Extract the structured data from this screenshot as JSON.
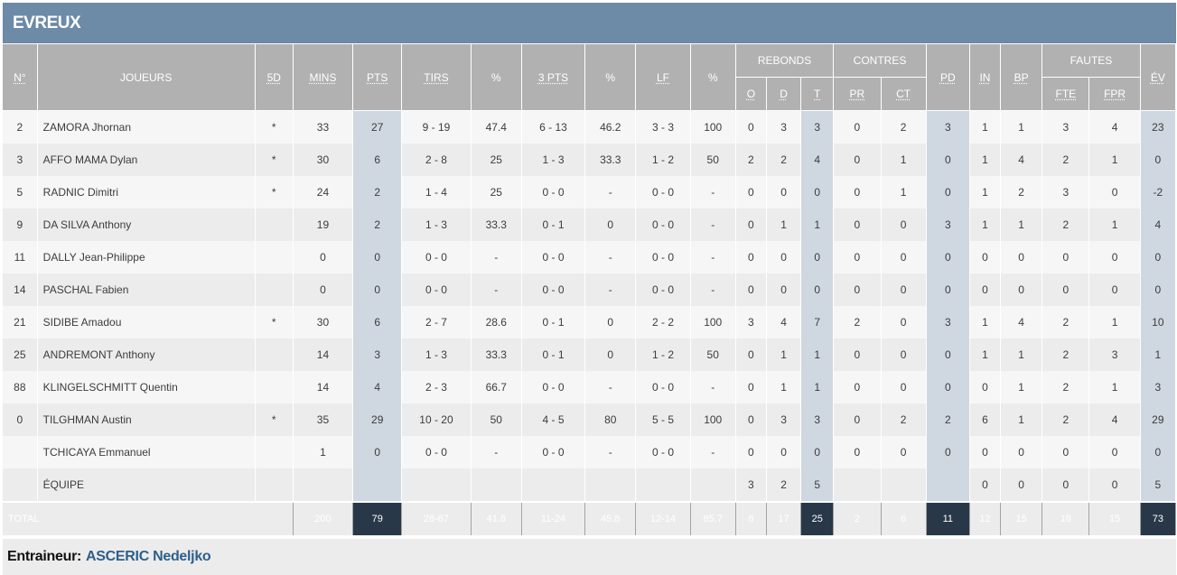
{
  "team": {
    "name": "EVREUX"
  },
  "headers": {
    "num": "N°",
    "player": "JOUEURS",
    "five": "5D",
    "mins": "MINS",
    "pts": "PTS",
    "tirs": "TIRS",
    "tirs_pct": "%",
    "three": "3 PTS",
    "three_pct": "%",
    "lf": "LF",
    "lf_pct": "%",
    "rebonds": "REBONDS",
    "reb_o": "O",
    "reb_d": "D",
    "reb_t": "T",
    "contres": "CONTRES",
    "contres_pr": "PR",
    "contres_ct": "CT",
    "pd": "PD",
    "in": "IN",
    "bp": "BP",
    "fautes": "FAUTES",
    "fautes_fte": "FTE",
    "fautes_fpr": "FPR",
    "ev": "ÉV"
  },
  "players": [
    {
      "num": "2",
      "name": "ZAMORA Jhornan",
      "five": "*",
      "mins": "33",
      "pts": "27",
      "tirs": "9 - 19",
      "tirs_pct": "47.4",
      "three": "6 - 13",
      "three_pct": "46.2",
      "lf": "3 - 3",
      "lf_pct": "100",
      "o": "0",
      "d": "3",
      "t": "3",
      "pr": "0",
      "ct": "2",
      "pd": "3",
      "in": "1",
      "bp": "1",
      "fte": "3",
      "fpr": "4",
      "ev": "23"
    },
    {
      "num": "3",
      "name": "AFFO MAMA Dylan",
      "five": "*",
      "mins": "30",
      "pts": "6",
      "tirs": "2 - 8",
      "tirs_pct": "25",
      "three": "1 - 3",
      "three_pct": "33.3",
      "lf": "1 - 2",
      "lf_pct": "50",
      "o": "2",
      "d": "2",
      "t": "4",
      "pr": "0",
      "ct": "1",
      "pd": "0",
      "in": "1",
      "bp": "4",
      "fte": "2",
      "fpr": "1",
      "ev": "0"
    },
    {
      "num": "5",
      "name": "RADNIC Dimitri",
      "five": "*",
      "mins": "24",
      "pts": "2",
      "tirs": "1 - 4",
      "tirs_pct": "25",
      "three": "0 - 0",
      "three_pct": "-",
      "lf": "0 - 0",
      "lf_pct": "-",
      "o": "0",
      "d": "0",
      "t": "0",
      "pr": "0",
      "ct": "1",
      "pd": "0",
      "in": "1",
      "bp": "2",
      "fte": "3",
      "fpr": "0",
      "ev": "-2"
    },
    {
      "num": "9",
      "name": "DA SILVA Anthony",
      "five": "",
      "mins": "19",
      "pts": "2",
      "tirs": "1 - 3",
      "tirs_pct": "33.3",
      "three": "0 - 1",
      "three_pct": "0",
      "lf": "0 - 0",
      "lf_pct": "-",
      "o": "0",
      "d": "1",
      "t": "1",
      "pr": "0",
      "ct": "0",
      "pd": "3",
      "in": "1",
      "bp": "1",
      "fte": "2",
      "fpr": "1",
      "ev": "4"
    },
    {
      "num": "11",
      "name": "DALLY Jean-Philippe",
      "five": "",
      "mins": "0",
      "pts": "0",
      "tirs": "0 - 0",
      "tirs_pct": "-",
      "three": "0 - 0",
      "three_pct": "-",
      "lf": "0 - 0",
      "lf_pct": "-",
      "o": "0",
      "d": "0",
      "t": "0",
      "pr": "0",
      "ct": "0",
      "pd": "0",
      "in": "0",
      "bp": "0",
      "fte": "0",
      "fpr": "0",
      "ev": "0"
    },
    {
      "num": "14",
      "name": "PASCHAL Fabien",
      "five": "",
      "mins": "0",
      "pts": "0",
      "tirs": "0 - 0",
      "tirs_pct": "-",
      "three": "0 - 0",
      "three_pct": "-",
      "lf": "0 - 0",
      "lf_pct": "-",
      "o": "0",
      "d": "0",
      "t": "0",
      "pr": "0",
      "ct": "0",
      "pd": "0",
      "in": "0",
      "bp": "0",
      "fte": "0",
      "fpr": "0",
      "ev": "0"
    },
    {
      "num": "21",
      "name": "SIDIBE Amadou",
      "five": "*",
      "mins": "30",
      "pts": "6",
      "tirs": "2 - 7",
      "tirs_pct": "28.6",
      "three": "0 - 1",
      "three_pct": "0",
      "lf": "2 - 2",
      "lf_pct": "100",
      "o": "3",
      "d": "4",
      "t": "7",
      "pr": "2",
      "ct": "0",
      "pd": "3",
      "in": "1",
      "bp": "4",
      "fte": "2",
      "fpr": "1",
      "ev": "10"
    },
    {
      "num": "25",
      "name": "ANDREMONT Anthony",
      "five": "",
      "mins": "14",
      "pts": "3",
      "tirs": "1 - 3",
      "tirs_pct": "33.3",
      "three": "0 - 1",
      "three_pct": "0",
      "lf": "1 - 2",
      "lf_pct": "50",
      "o": "0",
      "d": "1",
      "t": "1",
      "pr": "0",
      "ct": "0",
      "pd": "0",
      "in": "1",
      "bp": "1",
      "fte": "2",
      "fpr": "3",
      "ev": "1"
    },
    {
      "num": "88",
      "name": "KLINGELSCHMITT Quentin",
      "five": "",
      "mins": "14",
      "pts": "4",
      "tirs": "2 - 3",
      "tirs_pct": "66.7",
      "three": "0 - 0",
      "three_pct": "-",
      "lf": "0 - 0",
      "lf_pct": "-",
      "o": "0",
      "d": "1",
      "t": "1",
      "pr": "0",
      "ct": "0",
      "pd": "0",
      "in": "0",
      "bp": "1",
      "fte": "2",
      "fpr": "1",
      "ev": "3"
    },
    {
      "num": "0",
      "name": "TILGHMAN Austin",
      "five": "*",
      "mins": "35",
      "pts": "29",
      "tirs": "10 - 20",
      "tirs_pct": "50",
      "three": "4 - 5",
      "three_pct": "80",
      "lf": "5 - 5",
      "lf_pct": "100",
      "o": "0",
      "d": "3",
      "t": "3",
      "pr": "0",
      "ct": "2",
      "pd": "2",
      "in": "6",
      "bp": "1",
      "fte": "2",
      "fpr": "4",
      "ev": "29"
    },
    {
      "num": "",
      "name": "TCHICAYA Emmanuel",
      "five": "",
      "mins": "1",
      "pts": "0",
      "tirs": "0 - 0",
      "tirs_pct": "-",
      "three": "0 - 0",
      "three_pct": "-",
      "lf": "0 - 0",
      "lf_pct": "-",
      "o": "0",
      "d": "0",
      "t": "0",
      "pr": "0",
      "ct": "0",
      "pd": "0",
      "in": "0",
      "bp": "0",
      "fte": "0",
      "fpr": "0",
      "ev": "0"
    },
    {
      "num": "",
      "name": "ÉQUIPE",
      "five": "",
      "mins": "",
      "pts": "",
      "tirs": "",
      "tirs_pct": "",
      "three": "",
      "three_pct": "",
      "lf": "",
      "lf_pct": "",
      "o": "3",
      "d": "2",
      "t": "5",
      "pr": "",
      "ct": "",
      "pd": "",
      "in": "0",
      "bp": "0",
      "fte": "0",
      "fpr": "0",
      "ev": "5"
    }
  ],
  "total": {
    "label": "TOTAL",
    "mins": "200",
    "pts": "79",
    "tirs": "28-67",
    "tirs_pct": "41.8",
    "three": "11-24",
    "three_pct": "45.8",
    "lf": "12-14",
    "lf_pct": "85.7",
    "o": "8",
    "d": "17",
    "t": "25",
    "pr": "2",
    "ct": "6",
    "pd": "11",
    "in": "12",
    "bp": "15",
    "fte": "18",
    "fpr": "15",
    "ev": "73"
  },
  "coach": {
    "label": "Entraineur:",
    "name": "ASCERIC Nedeljko"
  }
}
